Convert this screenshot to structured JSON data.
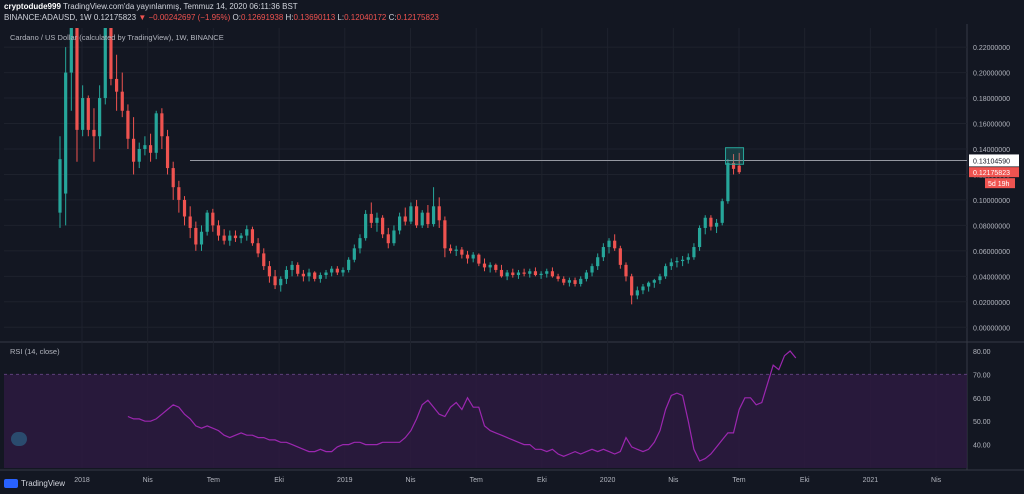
{
  "header": {
    "author": "cryptodude999",
    "published": "TradingView.com'da yayınlanmış, Temmuz 14, 2020 06:11:36 BST",
    "symbol": "BINANCE:ADAUSD, 1W",
    "last": "0.12175823",
    "change_arrow": "▼",
    "change": "−0.00242697 (−1.95%)",
    "o_label": "O:",
    "o": "0.12691938",
    "h_label": "H:",
    "h": "0.13690113",
    "l_label": "L:",
    "l": "0.12040172",
    "c_label": "C:",
    "c": "0.12175823"
  },
  "main_pane": {
    "title": "Cardano / US Dollar (calculated by TradingView), 1W, BINANCE",
    "price_ticks": [
      "0.22000000",
      "0.20000000",
      "0.18000000",
      "0.16000000",
      "0.14000000",
      "0.12000000",
      "0.10000000",
      "0.08000000",
      "0.06000000",
      "0.04000000",
      "0.02000000",
      "0.00000000"
    ],
    "horizontal_line_label": "0.13104590",
    "last_price_label": "0.12175823",
    "countdown_label": "5d 19h",
    "horizontal_line_value": 0.131
  },
  "rsi_pane": {
    "title": "RSI (14, close)",
    "ticks": [
      "80.00",
      "70.00",
      "60.00",
      "50.00",
      "40.00"
    ],
    "band": [
      30,
      70
    ]
  },
  "time_axis": {
    "labels": [
      "2018",
      "Nis",
      "Tem",
      "Eki",
      "2019",
      "Nis",
      "Tem",
      "Eki",
      "2020",
      "Nis",
      "Tem",
      "Eki",
      "2021",
      "Nis"
    ]
  },
  "footer": {
    "brand": "TradingView"
  },
  "colors": {
    "background": "#131722",
    "up": "#26a69a",
    "down": "#ef5350",
    "rsi_line": "#9c27b0",
    "rsi_band": "#2d1a3f",
    "grid": "#1e222d",
    "hline": "#9598a1"
  },
  "chart_data": [
    {
      "type": "candlestick",
      "title": "Cardano / US Dollar (calculated by TradingView), 1W, BINANCE",
      "ylim": [
        -0.01,
        0.235
      ],
      "candles": [
        {
          "o": 0.09,
          "h": 0.15,
          "l": 0.078,
          "c": 0.132
        },
        {
          "o": 0.105,
          "h": 0.22,
          "l": 0.08,
          "c": 0.2
        },
        {
          "o": 0.2,
          "h": 0.235,
          "l": 0.17,
          "c": 0.235
        },
        {
          "o": 0.235,
          "h": 0.235,
          "l": 0.13,
          "c": 0.155
        },
        {
          "o": 0.155,
          "h": 0.19,
          "l": 0.15,
          "c": 0.18
        },
        {
          "o": 0.18,
          "h": 0.182,
          "l": 0.15,
          "c": 0.155
        },
        {
          "o": 0.155,
          "h": 0.172,
          "l": 0.13,
          "c": 0.15
        },
        {
          "o": 0.15,
          "h": 0.19,
          "l": 0.14,
          "c": 0.18
        },
        {
          "o": 0.18,
          "h": 0.235,
          "l": 0.175,
          "c": 0.235
        },
        {
          "o": 0.235,
          "h": 0.235,
          "l": 0.19,
          "c": 0.195
        },
        {
          "o": 0.195,
          "h": 0.214,
          "l": 0.17,
          "c": 0.185
        },
        {
          "o": 0.185,
          "h": 0.2,
          "l": 0.165,
          "c": 0.17
        },
        {
          "o": 0.17,
          "h": 0.175,
          "l": 0.14,
          "c": 0.148
        },
        {
          "o": 0.148,
          "h": 0.165,
          "l": 0.12,
          "c": 0.13
        },
        {
          "o": 0.13,
          "h": 0.145,
          "l": 0.125,
          "c": 0.14
        },
        {
          "o": 0.14,
          "h": 0.15,
          "l": 0.135,
          "c": 0.143
        },
        {
          "o": 0.143,
          "h": 0.152,
          "l": 0.13,
          "c": 0.137
        },
        {
          "o": 0.137,
          "h": 0.17,
          "l": 0.132,
          "c": 0.168
        },
        {
          "o": 0.168,
          "h": 0.172,
          "l": 0.14,
          "c": 0.15
        },
        {
          "o": 0.15,
          "h": 0.155,
          "l": 0.12,
          "c": 0.125
        },
        {
          "o": 0.125,
          "h": 0.13,
          "l": 0.1,
          "c": 0.11
        },
        {
          "o": 0.11,
          "h": 0.115,
          "l": 0.09,
          "c": 0.1
        },
        {
          "o": 0.1,
          "h": 0.103,
          "l": 0.08,
          "c": 0.087
        },
        {
          "o": 0.087,
          "h": 0.095,
          "l": 0.07,
          "c": 0.078
        },
        {
          "o": 0.078,
          "h": 0.083,
          "l": 0.06,
          "c": 0.065
        },
        {
          "o": 0.065,
          "h": 0.08,
          "l": 0.06,
          "c": 0.075
        },
        {
          "o": 0.075,
          "h": 0.092,
          "l": 0.072,
          "c": 0.09
        },
        {
          "o": 0.09,
          "h": 0.093,
          "l": 0.075,
          "c": 0.08
        },
        {
          "o": 0.08,
          "h": 0.084,
          "l": 0.068,
          "c": 0.072
        },
        {
          "o": 0.072,
          "h": 0.077,
          "l": 0.065,
          "c": 0.068
        },
        {
          "o": 0.068,
          "h": 0.076,
          "l": 0.064,
          "c": 0.072
        },
        {
          "o": 0.072,
          "h": 0.076,
          "l": 0.067,
          "c": 0.07
        },
        {
          "o": 0.07,
          "h": 0.074,
          "l": 0.066,
          "c": 0.072
        },
        {
          "o": 0.072,
          "h": 0.08,
          "l": 0.068,
          "c": 0.077
        },
        {
          "o": 0.077,
          "h": 0.079,
          "l": 0.064,
          "c": 0.066
        },
        {
          "o": 0.066,
          "h": 0.07,
          "l": 0.055,
          "c": 0.058
        },
        {
          "o": 0.058,
          "h": 0.062,
          "l": 0.045,
          "c": 0.048
        },
        {
          "o": 0.048,
          "h": 0.052,
          "l": 0.035,
          "c": 0.04
        },
        {
          "o": 0.04,
          "h": 0.045,
          "l": 0.03,
          "c": 0.033
        },
        {
          "o": 0.033,
          "h": 0.04,
          "l": 0.028,
          "c": 0.038
        },
        {
          "o": 0.038,
          "h": 0.048,
          "l": 0.034,
          "c": 0.045
        },
        {
          "o": 0.045,
          "h": 0.052,
          "l": 0.04,
          "c": 0.049
        },
        {
          "o": 0.049,
          "h": 0.051,
          "l": 0.04,
          "c": 0.042
        },
        {
          "o": 0.042,
          "h": 0.045,
          "l": 0.036,
          "c": 0.04
        },
        {
          "o": 0.04,
          "h": 0.046,
          "l": 0.036,
          "c": 0.043
        },
        {
          "o": 0.043,
          "h": 0.044,
          "l": 0.036,
          "c": 0.038
        },
        {
          "o": 0.038,
          "h": 0.043,
          "l": 0.035,
          "c": 0.041
        },
        {
          "o": 0.041,
          "h": 0.045,
          "l": 0.038,
          "c": 0.043
        },
        {
          "o": 0.043,
          "h": 0.048,
          "l": 0.04,
          "c": 0.046
        },
        {
          "o": 0.046,
          "h": 0.048,
          "l": 0.041,
          "c": 0.043
        },
        {
          "o": 0.043,
          "h": 0.047,
          "l": 0.04,
          "c": 0.045
        },
        {
          "o": 0.045,
          "h": 0.055,
          "l": 0.043,
          "c": 0.053
        },
        {
          "o": 0.053,
          "h": 0.065,
          "l": 0.051,
          "c": 0.062
        },
        {
          "o": 0.062,
          "h": 0.073,
          "l": 0.058,
          "c": 0.07
        },
        {
          "o": 0.07,
          "h": 0.092,
          "l": 0.068,
          "c": 0.089
        },
        {
          "o": 0.089,
          "h": 0.098,
          "l": 0.078,
          "c": 0.082
        },
        {
          "o": 0.082,
          "h": 0.09,
          "l": 0.075,
          "c": 0.086
        },
        {
          "o": 0.086,
          "h": 0.088,
          "l": 0.07,
          "c": 0.073
        },
        {
          "o": 0.073,
          "h": 0.078,
          "l": 0.062,
          "c": 0.066
        },
        {
          "o": 0.066,
          "h": 0.08,
          "l": 0.064,
          "c": 0.076
        },
        {
          "o": 0.076,
          "h": 0.09,
          "l": 0.073,
          "c": 0.087
        },
        {
          "o": 0.087,
          "h": 0.094,
          "l": 0.08,
          "c": 0.083
        },
        {
          "o": 0.083,
          "h": 0.098,
          "l": 0.081,
          "c": 0.095
        },
        {
          "o": 0.095,
          "h": 0.1,
          "l": 0.078,
          "c": 0.08
        },
        {
          "o": 0.08,
          "h": 0.092,
          "l": 0.078,
          "c": 0.09
        },
        {
          "o": 0.09,
          "h": 0.096,
          "l": 0.078,
          "c": 0.081
        },
        {
          "o": 0.081,
          "h": 0.11,
          "l": 0.079,
          "c": 0.095
        },
        {
          "o": 0.095,
          "h": 0.102,
          "l": 0.078,
          "c": 0.084
        },
        {
          "o": 0.084,
          "h": 0.087,
          "l": 0.055,
          "c": 0.062
        },
        {
          "o": 0.062,
          "h": 0.065,
          "l": 0.058,
          "c": 0.06
        },
        {
          "o": 0.06,
          "h": 0.064,
          "l": 0.056,
          "c": 0.061
        },
        {
          "o": 0.061,
          "h": 0.063,
          "l": 0.054,
          "c": 0.057
        },
        {
          "o": 0.057,
          "h": 0.06,
          "l": 0.05,
          "c": 0.054
        },
        {
          "o": 0.054,
          "h": 0.059,
          "l": 0.051,
          "c": 0.057
        },
        {
          "o": 0.057,
          "h": 0.058,
          "l": 0.048,
          "c": 0.05
        },
        {
          "o": 0.05,
          "h": 0.054,
          "l": 0.044,
          "c": 0.047
        },
        {
          "o": 0.047,
          "h": 0.051,
          "l": 0.043,
          "c": 0.049
        },
        {
          "o": 0.049,
          "h": 0.05,
          "l": 0.043,
          "c": 0.045
        },
        {
          "o": 0.045,
          "h": 0.049,
          "l": 0.039,
          "c": 0.04
        },
        {
          "o": 0.04,
          "h": 0.045,
          "l": 0.037,
          "c": 0.043
        },
        {
          "o": 0.043,
          "h": 0.046,
          "l": 0.039,
          "c": 0.041
        },
        {
          "o": 0.041,
          "h": 0.045,
          "l": 0.038,
          "c": 0.043
        },
        {
          "o": 0.043,
          "h": 0.046,
          "l": 0.04,
          "c": 0.042
        },
        {
          "o": 0.042,
          "h": 0.046,
          "l": 0.039,
          "c": 0.044
        },
        {
          "o": 0.044,
          "h": 0.047,
          "l": 0.04,
          "c": 0.041
        },
        {
          "o": 0.041,
          "h": 0.044,
          "l": 0.038,
          "c": 0.042
        },
        {
          "o": 0.042,
          "h": 0.046,
          "l": 0.039,
          "c": 0.044
        },
        {
          "o": 0.044,
          "h": 0.047,
          "l": 0.039,
          "c": 0.04
        },
        {
          "o": 0.04,
          "h": 0.042,
          "l": 0.036,
          "c": 0.038
        },
        {
          "o": 0.038,
          "h": 0.04,
          "l": 0.033,
          "c": 0.035
        },
        {
          "o": 0.035,
          "h": 0.039,
          "l": 0.032,
          "c": 0.037
        },
        {
          "o": 0.037,
          "h": 0.039,
          "l": 0.032,
          "c": 0.034
        },
        {
          "o": 0.034,
          "h": 0.04,
          "l": 0.032,
          "c": 0.038
        },
        {
          "o": 0.038,
          "h": 0.045,
          "l": 0.036,
          "c": 0.043
        },
        {
          "o": 0.043,
          "h": 0.05,
          "l": 0.04,
          "c": 0.048
        },
        {
          "o": 0.048,
          "h": 0.058,
          "l": 0.045,
          "c": 0.055
        },
        {
          "o": 0.055,
          "h": 0.066,
          "l": 0.052,
          "c": 0.063
        },
        {
          "o": 0.063,
          "h": 0.07,
          "l": 0.058,
          "c": 0.068
        },
        {
          "o": 0.068,
          "h": 0.073,
          "l": 0.06,
          "c": 0.062
        },
        {
          "o": 0.062,
          "h": 0.064,
          "l": 0.046,
          "c": 0.049
        },
        {
          "o": 0.049,
          "h": 0.051,
          "l": 0.036,
          "c": 0.04
        },
        {
          "o": 0.04,
          "h": 0.042,
          "l": 0.018,
          "c": 0.025
        },
        {
          "o": 0.025,
          "h": 0.032,
          "l": 0.022,
          "c": 0.029
        },
        {
          "o": 0.029,
          "h": 0.034,
          "l": 0.026,
          "c": 0.032
        },
        {
          "o": 0.032,
          "h": 0.036,
          "l": 0.028,
          "c": 0.035
        },
        {
          "o": 0.035,
          "h": 0.038,
          "l": 0.031,
          "c": 0.037
        },
        {
          "o": 0.037,
          "h": 0.042,
          "l": 0.034,
          "c": 0.04
        },
        {
          "o": 0.04,
          "h": 0.05,
          "l": 0.038,
          "c": 0.048
        },
        {
          "o": 0.048,
          "h": 0.054,
          "l": 0.045,
          "c": 0.051
        },
        {
          "o": 0.051,
          "h": 0.055,
          "l": 0.047,
          "c": 0.052
        },
        {
          "o": 0.052,
          "h": 0.056,
          "l": 0.048,
          "c": 0.053
        },
        {
          "o": 0.053,
          "h": 0.058,
          "l": 0.05,
          "c": 0.055
        },
        {
          "o": 0.055,
          "h": 0.066,
          "l": 0.053,
          "c": 0.063
        },
        {
          "o": 0.063,
          "h": 0.08,
          "l": 0.06,
          "c": 0.078
        },
        {
          "o": 0.078,
          "h": 0.088,
          "l": 0.073,
          "c": 0.086
        },
        {
          "o": 0.086,
          "h": 0.088,
          "l": 0.076,
          "c": 0.079
        },
        {
          "o": 0.079,
          "h": 0.085,
          "l": 0.074,
          "c": 0.082
        },
        {
          "o": 0.082,
          "h": 0.101,
          "l": 0.08,
          "c": 0.099
        },
        {
          "o": 0.099,
          "h": 0.132,
          "l": 0.097,
          "c": 0.129
        },
        {
          "o": 0.129,
          "h": 0.136,
          "l": 0.12,
          "c": 0.1244
        },
        {
          "o": 0.1269,
          "h": 0.1369,
          "l": 0.1204,
          "c": 0.1218
        }
      ]
    },
    {
      "type": "line",
      "title": "RSI (14, close)",
      "ylim": [
        30,
        83
      ],
      "start_index": 12,
      "values": [
        52,
        51,
        51,
        50,
        50,
        51,
        53,
        55,
        57,
        56,
        53,
        51,
        48,
        47,
        48,
        47,
        46,
        44,
        43,
        44,
        45,
        44,
        44,
        43,
        43,
        42,
        42,
        41,
        41,
        40,
        39,
        38,
        37,
        37,
        38,
        37,
        37,
        39,
        40,
        40,
        41,
        41,
        40,
        40,
        40,
        41,
        41,
        41,
        41,
        43,
        46,
        51,
        57,
        59,
        56,
        53,
        52,
        56,
        58,
        55,
        60,
        56,
        56,
        48,
        46,
        45,
        44,
        43,
        42,
        41,
        40,
        40,
        38,
        38,
        37,
        38,
        36,
        35,
        36,
        37,
        36,
        37,
        38,
        37,
        38,
        37,
        36,
        37,
        43,
        39,
        38,
        37,
        38,
        41,
        46,
        55,
        61,
        62,
        61,
        50,
        38,
        33,
        34,
        36,
        39,
        42,
        45,
        45,
        55,
        60,
        60,
        57,
        58,
        66,
        74,
        72,
        78,
        80,
        77
      ]
    }
  ]
}
